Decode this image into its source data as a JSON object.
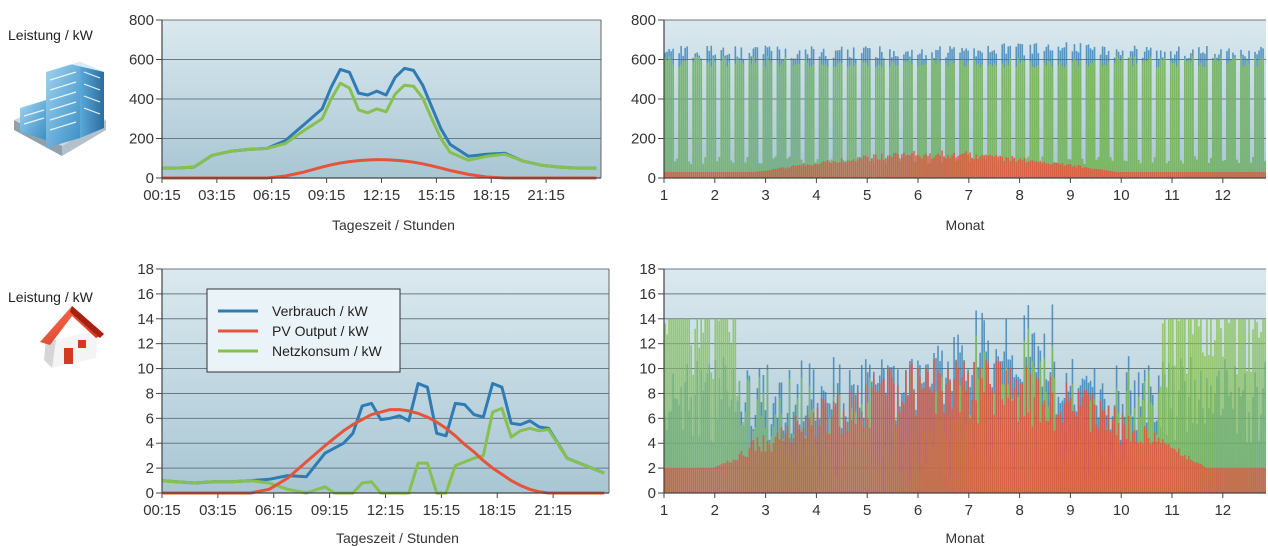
{
  "left_labels": {
    "top": "Leistung / kW",
    "bottom": "Leistung / kW"
  },
  "colors": {
    "verbrauch": "#2f7bb3",
    "pv": "#e5543a",
    "netz": "#86c050",
    "grid": "#6b7b86",
    "plot_bg_top": "#dbe9ef",
    "plot_bg_bottom": "#a8c6d3"
  },
  "legend": {
    "items": [
      {
        "label": "Verbrauch / kW",
        "color": "#2f7bb3"
      },
      {
        "label": "PV Output / kW",
        "color": "#e5543a"
      },
      {
        "label": "Netzkonsum / kW",
        "color": "#86c050"
      }
    ]
  },
  "icons": {
    "top": "office-building-icon",
    "bottom": "house-icon"
  },
  "chart_data": [
    {
      "id": "building-day",
      "type": "line",
      "xlabel": "Tageszeit / Stunden",
      "ylabel": "Leistung / kW",
      "ylim": [
        0,
        800
      ],
      "yticks": [
        "0",
        "200",
        "400",
        "600",
        "800"
      ],
      "xticks": [
        "00:15",
        "03:15",
        "06:15",
        "09:15",
        "12:15",
        "15:15",
        "18:15",
        "21:15"
      ],
      "grid": true,
      "x_hours": [
        0.25,
        1,
        2,
        3,
        4,
        5,
        6,
        7,
        8,
        9,
        9.5,
        10,
        10.5,
        11,
        11.5,
        12,
        12.5,
        13,
        13.5,
        14,
        14.5,
        15,
        15.5,
        16,
        17,
        18,
        19,
        20,
        21,
        22,
        23,
        24
      ],
      "series": [
        {
          "name": "Verbrauch / kW",
          "values": [
            50,
            50,
            55,
            115,
            135,
            145,
            150,
            190,
            270,
            350,
            460,
            550,
            535,
            430,
            420,
            440,
            420,
            510,
            555,
            545,
            470,
            360,
            250,
            170,
            110,
            120,
            125,
            85,
            65,
            55,
            50,
            50
          ]
        },
        {
          "name": "PV Output / kW",
          "values": [
            0,
            0,
            0,
            0,
            0,
            0,
            0,
            10,
            30,
            55,
            67,
            76,
            83,
            88,
            91,
            93,
            92,
            90,
            86,
            80,
            72,
            62,
            50,
            38,
            18,
            5,
            0,
            0,
            0,
            0,
            0,
            0
          ]
        },
        {
          "name": "Netzkonsum / kW",
          "values": [
            50,
            50,
            55,
            115,
            135,
            145,
            150,
            175,
            240,
            300,
            400,
            480,
            455,
            345,
            330,
            350,
            335,
            425,
            470,
            465,
            405,
            300,
            200,
            130,
            90,
            110,
            120,
            85,
            65,
            55,
            50,
            50
          ]
        }
      ]
    },
    {
      "id": "building-year",
      "type": "bar",
      "xlabel": "Monat",
      "ylim": [
        0,
        800
      ],
      "yticks": [
        "0",
        "200",
        "400",
        "600",
        "800"
      ],
      "xticks": [
        "1",
        "2",
        "3",
        "4",
        "5",
        "6",
        "7",
        "8",
        "9",
        "10",
        "11",
        "12"
      ],
      "grid": true,
      "description_values": {
        "verbrauch_range": [
          600,
          690
        ],
        "netz_range": [
          0,
          620
        ],
        "pv_range": [
          0,
          150
        ]
      }
    },
    {
      "id": "house-day",
      "type": "line",
      "xlabel": "Tageszeit / Stunden",
      "ylabel": "Leistung / kW",
      "ylim": [
        0,
        18
      ],
      "yticks": [
        "0",
        "2",
        "4",
        "6",
        "8",
        "10",
        "12",
        "14",
        "16",
        "18"
      ],
      "xticks": [
        "00:15",
        "03:15",
        "06:15",
        "09:15",
        "12:15",
        "15:15",
        "18:15",
        "21:15"
      ],
      "grid": true,
      "legend": "top-left",
      "x_hours": [
        0.25,
        1,
        2,
        3,
        4,
        5,
        6,
        7,
        8,
        9,
        9.5,
        10,
        10.5,
        11,
        11.5,
        12,
        12.5,
        13,
        13.5,
        14,
        14.5,
        15,
        15.5,
        16,
        16.5,
        17,
        17.5,
        18,
        18.5,
        19,
        19.5,
        20,
        20.5,
        21,
        22,
        23,
        24
      ],
      "series": [
        {
          "name": "Verbrauch / kW",
          "values": [
            1.0,
            0.9,
            0.8,
            0.9,
            0.9,
            1.0,
            1.1,
            1.4,
            1.3,
            3.2,
            3.6,
            4.0,
            4.8,
            7.0,
            7.2,
            5.9,
            6.0,
            6.2,
            5.8,
            8.8,
            8.5,
            4.8,
            4.6,
            7.2,
            7.1,
            6.3,
            6.1,
            8.8,
            8.5,
            5.6,
            5.5,
            5.8,
            5.3,
            5.2,
            2.8,
            2.2,
            1.6
          ]
        },
        {
          "name": "PV Output / kW",
          "values": [
            0,
            0,
            0,
            0,
            0,
            0,
            0.3,
            1.2,
            2.5,
            3.8,
            4.4,
            5.0,
            5.5,
            5.9,
            6.3,
            6.5,
            6.7,
            6.7,
            6.6,
            6.4,
            6.1,
            5.7,
            5.2,
            4.6,
            3.9,
            3.3,
            2.6,
            2.0,
            1.5,
            1.0,
            0.6,
            0.3,
            0.1,
            0,
            0,
            0,
            0
          ]
        },
        {
          "name": "Netzkonsum / kW",
          "values": [
            1.0,
            0.9,
            0.8,
            0.9,
            0.9,
            1.0,
            0.8,
            0.3,
            0,
            0.5,
            0,
            0,
            0,
            0.8,
            0.9,
            0,
            0,
            0,
            0,
            2.4,
            2.4,
            0,
            0,
            2.2,
            2.5,
            2.8,
            3.0,
            6.5,
            6.8,
            4.5,
            5.0,
            5.2,
            5.0,
            5.1,
            2.8,
            2.2,
            1.6
          ]
        }
      ]
    },
    {
      "id": "house-year",
      "type": "bar",
      "xlabel": "Monat",
      "ylim": [
        0,
        18
      ],
      "yticks": [
        "0",
        "2",
        "4",
        "6",
        "8",
        "10",
        "12",
        "14",
        "16",
        "18"
      ],
      "xticks": [
        "1",
        "2",
        "3",
        "4",
        "5",
        "6",
        "7",
        "8",
        "9",
        "10",
        "11",
        "12"
      ],
      "grid": true,
      "description_values": {
        "verbrauch_range": [
          0,
          16.2
        ],
        "netz_range": [
          0,
          14
        ],
        "pv_range": [
          0,
          12.5
        ]
      }
    }
  ]
}
